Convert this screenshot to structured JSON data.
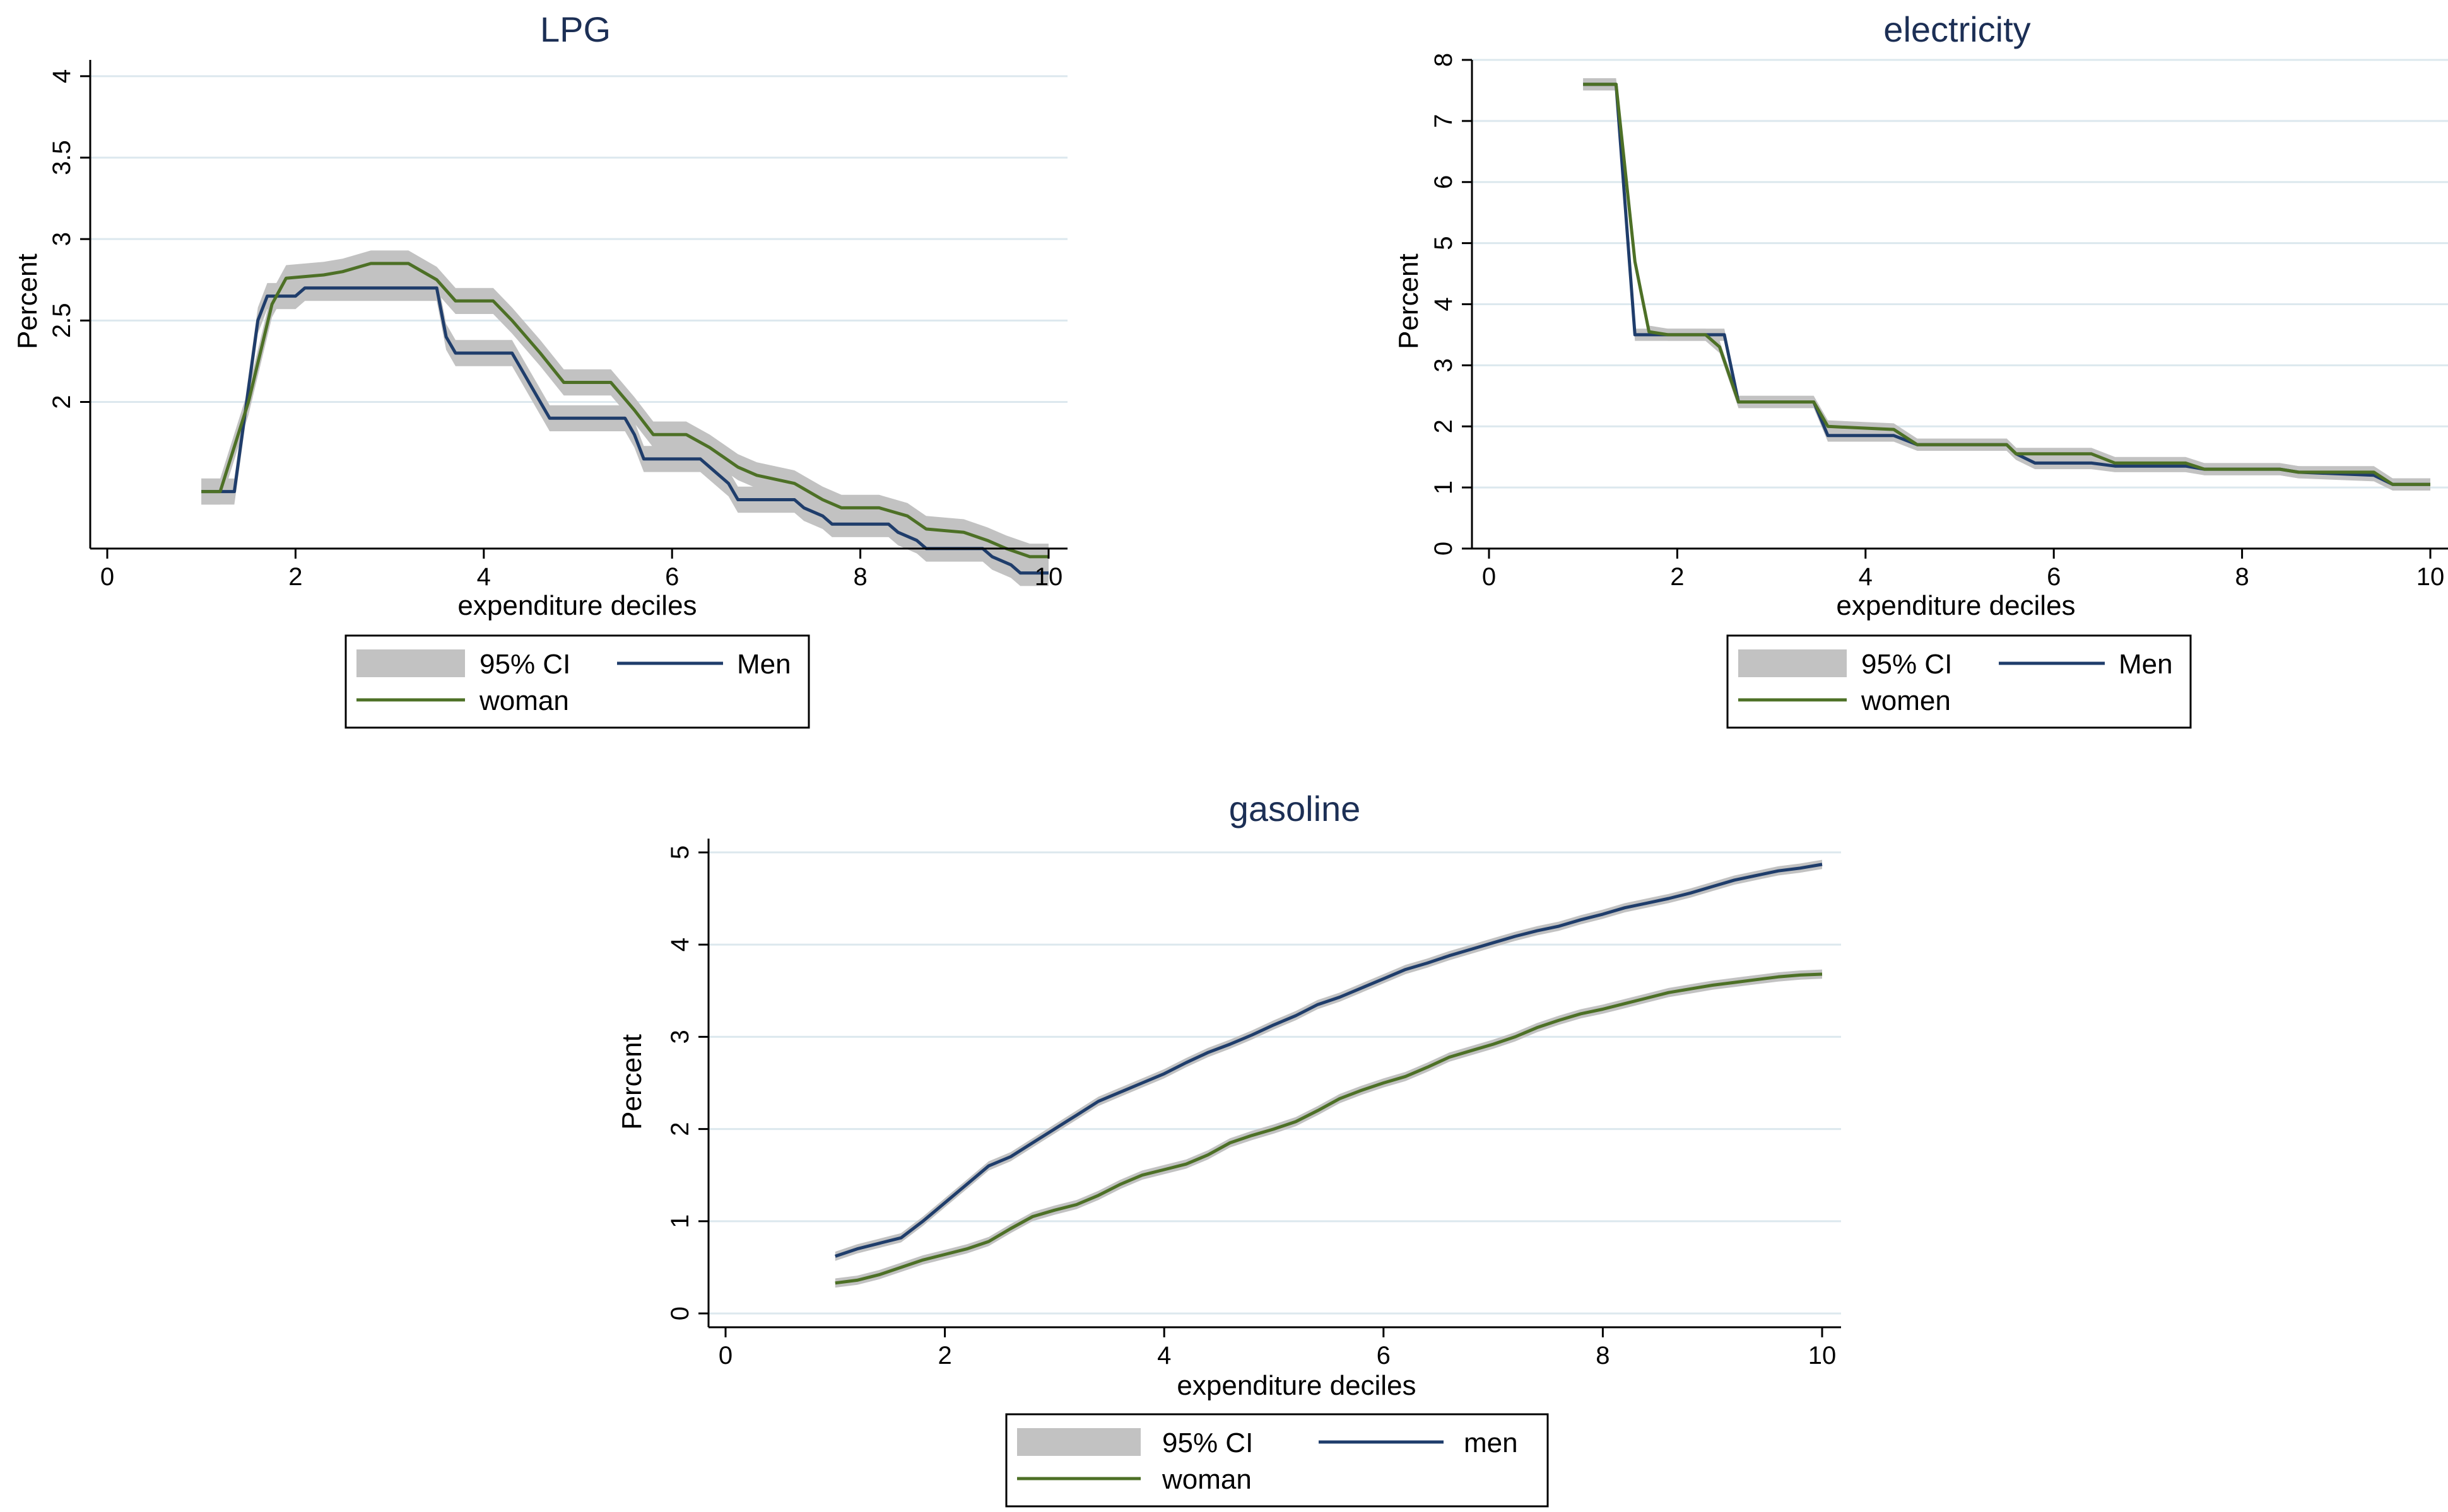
{
  "colors": {
    "men": "#1f3d6b",
    "women": "#4d7026",
    "ci": "#c2c2c2",
    "grid": "#dce8ee",
    "axis": "#000000",
    "title": "#1c2f55"
  },
  "chart_data": [
    {
      "type": "line",
      "title": "LPG",
      "xlabel": "expenditure deciles",
      "ylabel": "Percent",
      "xlim": [
        0,
        10
      ],
      "ylim": [
        1.1,
        4.1
      ],
      "xticks": [
        "0",
        "2",
        "4",
        "6",
        "8",
        "10"
      ],
      "yticks": [
        "2",
        "2.5",
        "3",
        "3.5",
        "4"
      ],
      "grid": true,
      "ci_half_width": 0.08,
      "legend": {
        "ci": "95% CI",
        "men": "Men",
        "women": "woman",
        "placement": "bottom"
      },
      "series": [
        {
          "name": "Men",
          "x": [
            1.0,
            1.3,
            1.35,
            1.6,
            1.7,
            2.0,
            2.1,
            2.5,
            2.6,
            3.5,
            3.6,
            3.7,
            4.3,
            4.4,
            4.6,
            4.7,
            5.5,
            5.6,
            5.7,
            6.3,
            6.4,
            6.6,
            6.7,
            7.3,
            7.4,
            7.6,
            7.7,
            8.3,
            8.4,
            8.6,
            8.7,
            9.3,
            9.4,
            9.6,
            9.7,
            10.0
          ],
          "values": [
            1.45,
            1.45,
            1.45,
            2.5,
            2.65,
            2.65,
            2.7,
            2.7,
            2.7,
            2.7,
            2.4,
            2.3,
            2.3,
            2.2,
            2.0,
            1.9,
            1.9,
            1.8,
            1.65,
            1.65,
            1.6,
            1.5,
            1.4,
            1.4,
            1.35,
            1.3,
            1.25,
            1.25,
            1.2,
            1.15,
            1.1,
            1.1,
            1.05,
            1.0,
            0.95,
            0.95
          ]
        },
        {
          "name": "woman",
          "x": [
            1.0,
            1.2,
            1.5,
            1.75,
            1.9,
            2.3,
            2.5,
            2.8,
            3.2,
            3.5,
            3.7,
            4.1,
            4.3,
            4.6,
            4.85,
            5.35,
            5.6,
            5.8,
            6.15,
            6.4,
            6.7,
            6.9,
            7.3,
            7.6,
            7.8,
            8.2,
            8.5,
            8.7,
            9.1,
            9.35,
            9.55,
            9.8,
            10.0
          ],
          "values": [
            1.45,
            1.45,
            2.0,
            2.6,
            2.76,
            2.78,
            2.8,
            2.85,
            2.85,
            2.75,
            2.62,
            2.62,
            2.5,
            2.3,
            2.12,
            2.12,
            1.95,
            1.8,
            1.8,
            1.72,
            1.6,
            1.55,
            1.5,
            1.4,
            1.35,
            1.35,
            1.3,
            1.22,
            1.2,
            1.15,
            1.1,
            1.05,
            1.05
          ]
        }
      ]
    },
    {
      "type": "line",
      "title": "electricity",
      "xlabel": "expenditure deciles",
      "ylabel": "Percent",
      "xlim": [
        0,
        10
      ],
      "ylim": [
        0,
        8
      ],
      "xticks": [
        "0",
        "2",
        "4",
        "6",
        "8",
        "10"
      ],
      "yticks": [
        "0",
        "1",
        "2",
        "3",
        "4",
        "5",
        "6",
        "7",
        "8"
      ],
      "grid": true,
      "ci_half_width": 0.1,
      "legend": {
        "ci": "95% CI",
        "men": "Men",
        "women": "women",
        "placement": "bottom"
      },
      "series": [
        {
          "name": "Men",
          "x": [
            1.0,
            1.35,
            1.55,
            1.75,
            2.0,
            2.45,
            2.5,
            2.65,
            2.9,
            3.45,
            3.6,
            4.3,
            4.55,
            5.5,
            5.6,
            5.8,
            6.4,
            6.65,
            7.4,
            7.6,
            8.4,
            8.6,
            9.4,
            9.6,
            10.0
          ],
          "values": [
            7.6,
            7.6,
            3.5,
            3.5,
            3.5,
            3.5,
            3.5,
            2.4,
            2.4,
            2.4,
            1.85,
            1.85,
            1.7,
            1.7,
            1.55,
            1.4,
            1.4,
            1.35,
            1.35,
            1.3,
            1.3,
            1.25,
            1.2,
            1.05,
            1.05
          ]
        },
        {
          "name": "women",
          "x": [
            1.0,
            1.35,
            1.55,
            1.7,
            1.9,
            2.3,
            2.45,
            2.65,
            2.9,
            3.45,
            3.6,
            4.3,
            4.55,
            5.5,
            5.6,
            5.8,
            6.4,
            6.65,
            7.4,
            7.6,
            8.4,
            8.6,
            9.4,
            9.6,
            10.0
          ],
          "values": [
            7.6,
            7.6,
            4.7,
            3.55,
            3.5,
            3.5,
            3.3,
            2.4,
            2.4,
            2.4,
            2.0,
            1.95,
            1.7,
            1.7,
            1.55,
            1.55,
            1.55,
            1.4,
            1.4,
            1.3,
            1.3,
            1.25,
            1.25,
            1.05,
            1.05
          ]
        }
      ]
    },
    {
      "type": "line",
      "title": "gasoline",
      "xlabel": "expenditure deciles",
      "ylabel": "Percent",
      "xlim": [
        0,
        10
      ],
      "ylim": [
        -0.15,
        5.15
      ],
      "xticks": [
        "0",
        "2",
        "4",
        "6",
        "8",
        "10"
      ],
      "yticks": [
        "0",
        "1",
        "2",
        "3",
        "4",
        "5"
      ],
      "grid": true,
      "ci_half_width": 0.05,
      "legend": {
        "ci": "95% CI",
        "men": "men",
        "women": "woman",
        "placement": "bottom"
      },
      "series": [
        {
          "name": "men",
          "x": [
            1.0,
            1.2,
            1.4,
            1.6,
            1.8,
            2.0,
            2.2,
            2.4,
            2.6,
            2.8,
            3.0,
            3.2,
            3.4,
            3.6,
            3.8,
            4.0,
            4.2,
            4.4,
            4.6,
            4.8,
            5.0,
            5.2,
            5.4,
            5.6,
            5.8,
            6.0,
            6.2,
            6.4,
            6.6,
            6.8,
            7.0,
            7.2,
            7.4,
            7.6,
            7.8,
            8.0,
            8.2,
            8.4,
            8.6,
            8.8,
            9.0,
            9.2,
            9.4,
            9.6,
            9.8,
            10.0
          ],
          "values": [
            0.62,
            0.7,
            0.76,
            0.82,
            1.0,
            1.2,
            1.4,
            1.6,
            1.7,
            1.85,
            2.0,
            2.15,
            2.3,
            2.4,
            2.5,
            2.6,
            2.72,
            2.83,
            2.92,
            3.02,
            3.13,
            3.23,
            3.35,
            3.43,
            3.53,
            3.63,
            3.73,
            3.8,
            3.88,
            3.95,
            4.02,
            4.09,
            4.15,
            4.2,
            4.27,
            4.33,
            4.4,
            4.45,
            4.5,
            4.56,
            4.63,
            4.7,
            4.75,
            4.8,
            4.83,
            4.87
          ]
        },
        {
          "name": "woman",
          "x": [
            1.0,
            1.2,
            1.4,
            1.6,
            1.8,
            2.0,
            2.2,
            2.4,
            2.6,
            2.8,
            3.0,
            3.2,
            3.4,
            3.6,
            3.8,
            4.0,
            4.2,
            4.4,
            4.6,
            4.8,
            5.0,
            5.2,
            5.4,
            5.6,
            5.8,
            6.0,
            6.2,
            6.4,
            6.6,
            6.8,
            7.0,
            7.2,
            7.4,
            7.6,
            7.8,
            8.0,
            8.2,
            8.4,
            8.6,
            8.8,
            9.0,
            9.2,
            9.4,
            9.6,
            9.8,
            10.0
          ],
          "values": [
            0.33,
            0.36,
            0.42,
            0.5,
            0.58,
            0.64,
            0.7,
            0.78,
            0.92,
            1.05,
            1.12,
            1.18,
            1.28,
            1.4,
            1.5,
            1.56,
            1.62,
            1.72,
            1.85,
            1.93,
            2.0,
            2.08,
            2.2,
            2.33,
            2.42,
            2.5,
            2.57,
            2.67,
            2.78,
            2.85,
            2.92,
            3.0,
            3.1,
            3.18,
            3.25,
            3.3,
            3.36,
            3.42,
            3.48,
            3.52,
            3.56,
            3.59,
            3.62,
            3.65,
            3.67,
            3.68
          ]
        }
      ]
    }
  ]
}
